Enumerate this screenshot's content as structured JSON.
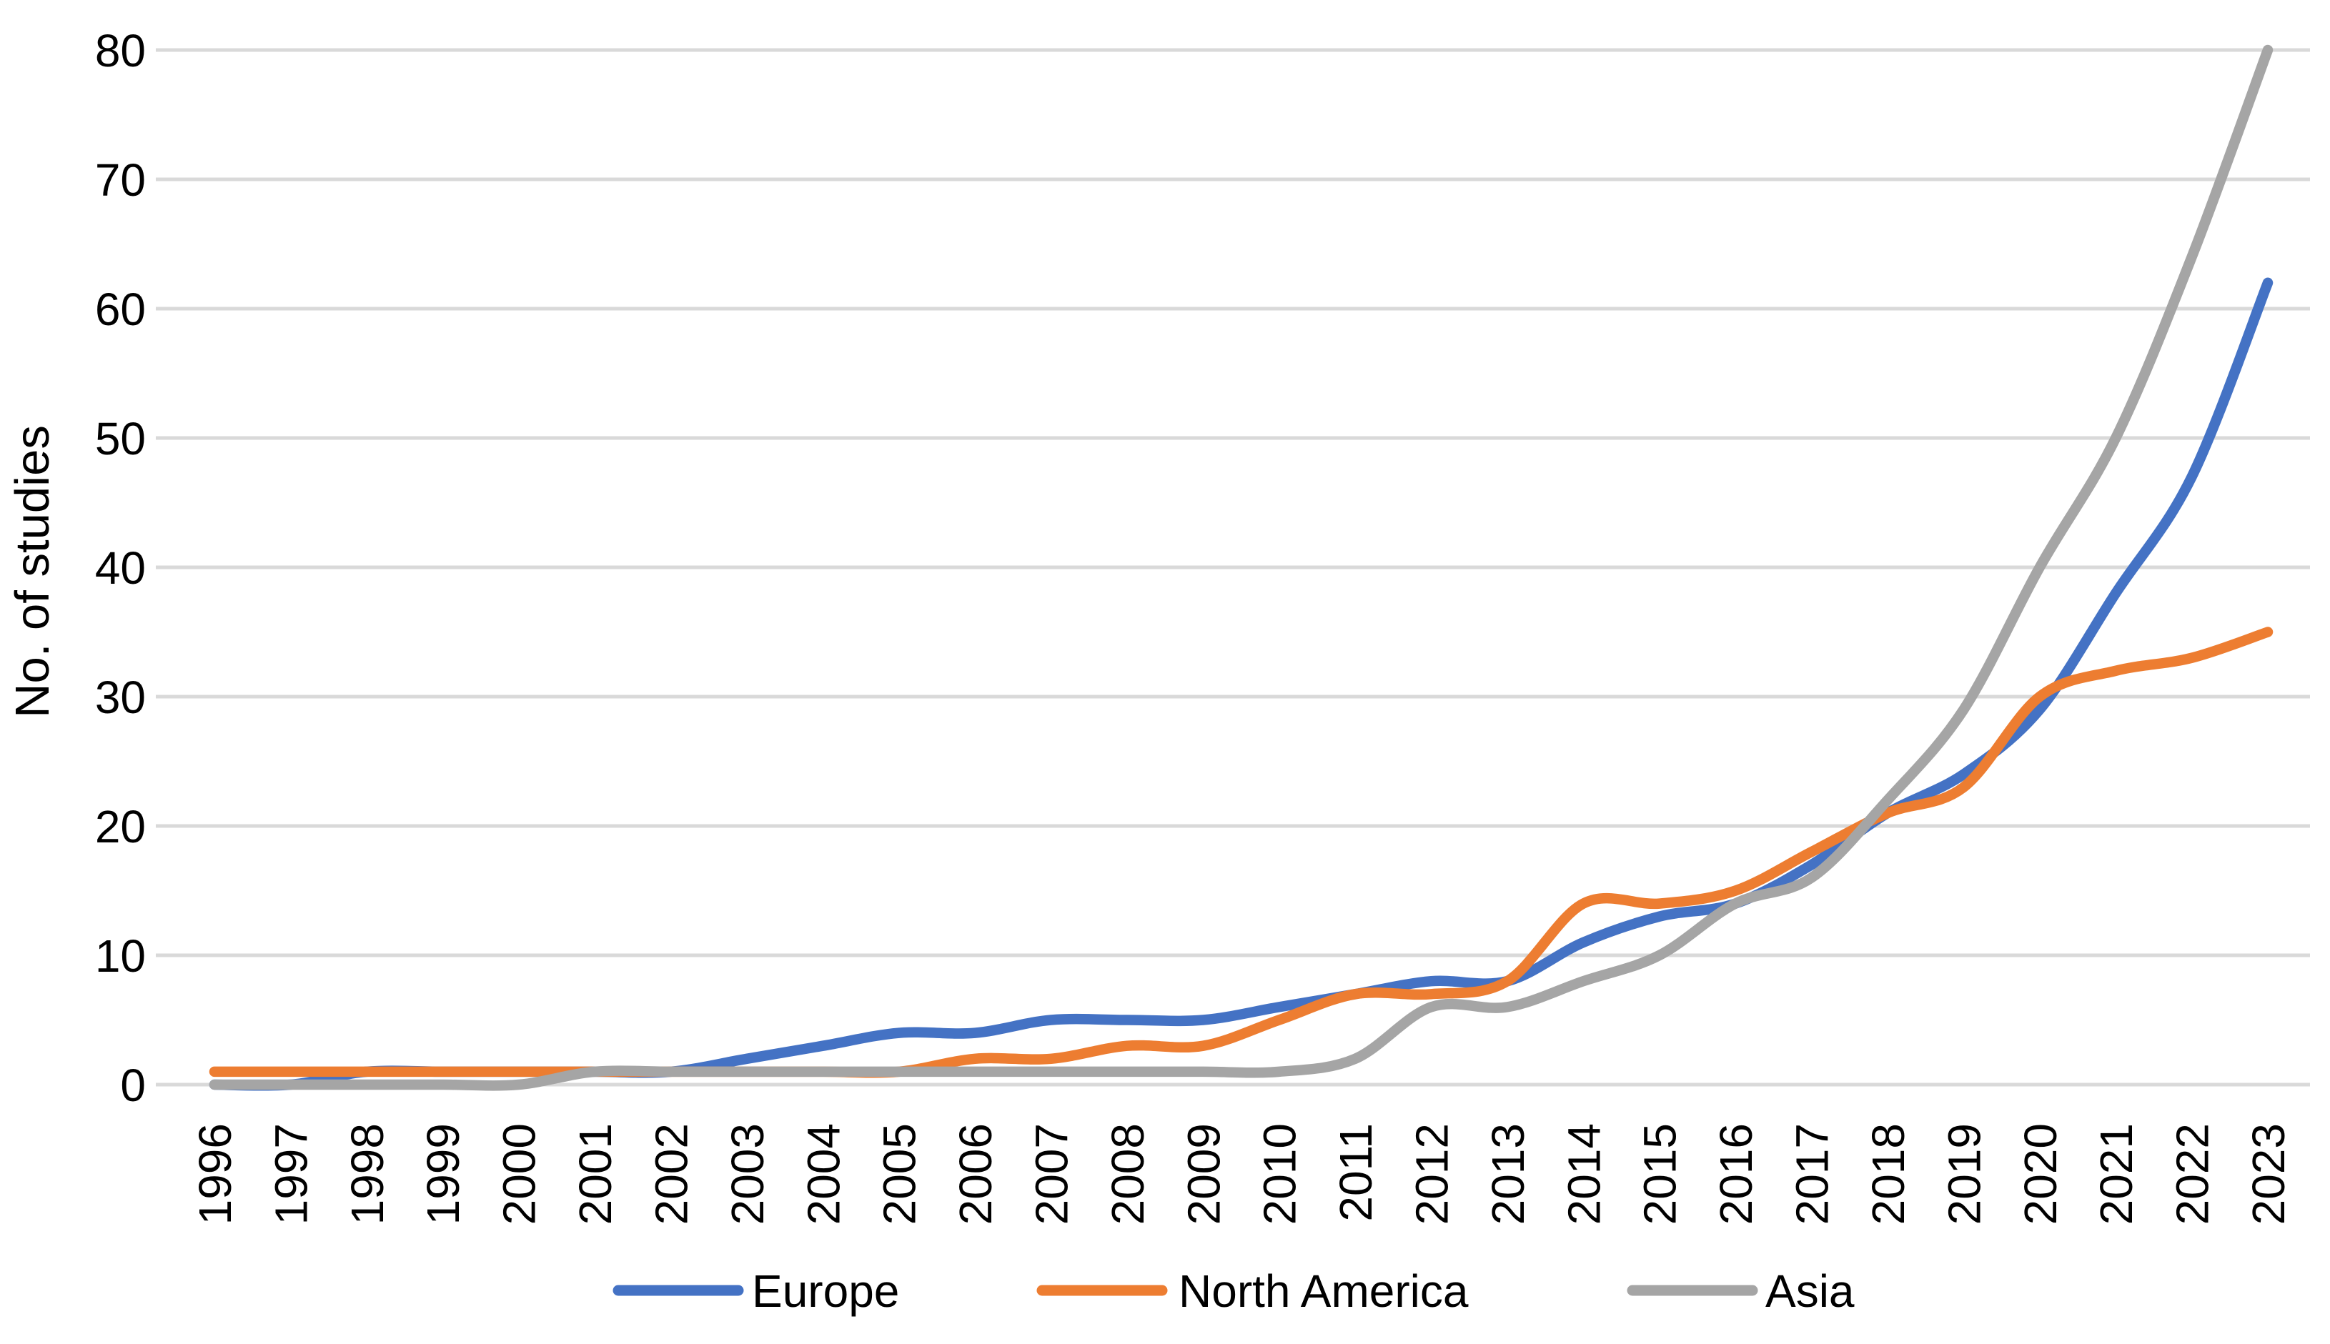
{
  "chart_data": {
    "type": "line",
    "title": "",
    "ylabel": "No. of studies",
    "xlabel": "",
    "ylim": [
      0,
      80
    ],
    "yticks": [
      0,
      10,
      20,
      30,
      40,
      50,
      60,
      70,
      80
    ],
    "grid": "horizontal",
    "gridline_color": "#D9D9D9",
    "text_color": "#000000",
    "background_color": "#FFFFFF",
    "smooth": true,
    "legend_position": "bottom",
    "categories": [
      1996,
      1997,
      1998,
      1999,
      2000,
      2001,
      2002,
      2003,
      2004,
      2005,
      2006,
      2007,
      2008,
      2009,
      2010,
      2011,
      2012,
      2013,
      2014,
      2015,
      2016,
      2017,
      2018,
      2019,
      2020,
      2021,
      2022,
      2023
    ],
    "series": [
      {
        "name": "Europe",
        "color": "#4472C4",
        "values": [
          0,
          0,
          1,
          1,
          1,
          1,
          1,
          2,
          3,
          4,
          4,
          5,
          5,
          5,
          6,
          7,
          8,
          8,
          11,
          13,
          14,
          17,
          21,
          24,
          29,
          38,
          47,
          62
        ]
      },
      {
        "name": "North America",
        "color": "#ED7D31",
        "values": [
          1,
          1,
          1,
          1,
          1,
          1,
          1,
          1,
          1,
          1,
          2,
          2,
          3,
          3,
          5,
          7,
          7,
          8,
          14,
          14,
          15,
          18,
          21,
          23,
          30,
          32,
          33,
          35
        ]
      },
      {
        "name": "Asia",
        "color": "#A5A5A5",
        "values": [
          0,
          0,
          0,
          0,
          0,
          1,
          1,
          1,
          1,
          1,
          1,
          1,
          1,
          1,
          1,
          2,
          6,
          6,
          8,
          10,
          14,
          16,
          22,
          29,
          40,
          50,
          64,
          80
        ]
      }
    ]
  }
}
